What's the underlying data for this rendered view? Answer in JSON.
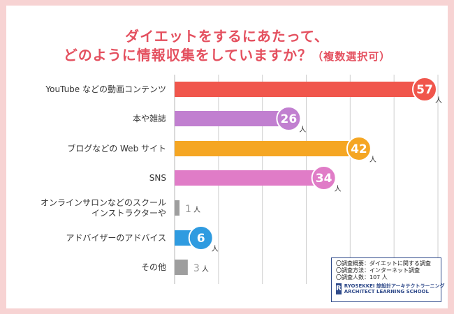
{
  "title": {
    "line1": "ダイエットをするにあたって、",
    "line2": "どのように情報収集をしていますか？",
    "sub": "（複数選択可）"
  },
  "colors": {
    "background": "#f7d3d3",
    "title": "#e4505f",
    "grey": "#9e9e9e"
  },
  "chart_data": {
    "type": "bar",
    "orientation": "horizontal",
    "title": "ダイエットをするにあたって、どのように情報収集をしていますか？（複数選択可）",
    "xlim": [
      0,
      60
    ],
    "grid": true,
    "unit": "人",
    "categories": [
      "YouTube などの動画コンテンツ",
      "本や雑誌",
      "ブログなどの Web サイト",
      "SNS",
      "オンラインサロンなどのスクール インストラクターや",
      "アドバイザーのアドバイス",
      "その他"
    ],
    "category_lines": [
      [
        "YouTube などの動画コンテンツ"
      ],
      [
        "本や雑誌"
      ],
      [
        "ブログなどの Web サイト"
      ],
      [
        "SNS"
      ],
      [
        "オンラインサロンなどのスクール",
        "インストラクターや"
      ],
      [
        "アドバイザーのアドバイス"
      ],
      [
        "その他"
      ]
    ],
    "values": [
      57,
      26,
      42,
      34,
      1,
      6,
      3
    ],
    "colors": [
      "#f0564c",
      "#c17fd0",
      "#f5a623",
      "#e07cc7",
      "#9e9e9e",
      "#2f9be0",
      "#9e9e9e"
    ],
    "badge": [
      true,
      true,
      true,
      true,
      false,
      true,
      false
    ]
  },
  "notes": {
    "line1": "〇調査概要：ダイエットに関する調査",
    "line2": "〇調査方法：インターネット調査",
    "line3": "〇調査人数：107 人"
  },
  "logo": {
    "mark": "R",
    "line1": "RYOSEKKEI 諒設計アーキテクトラーニング",
    "line2": "ARCHITECT LEARNING SCHOOL"
  }
}
